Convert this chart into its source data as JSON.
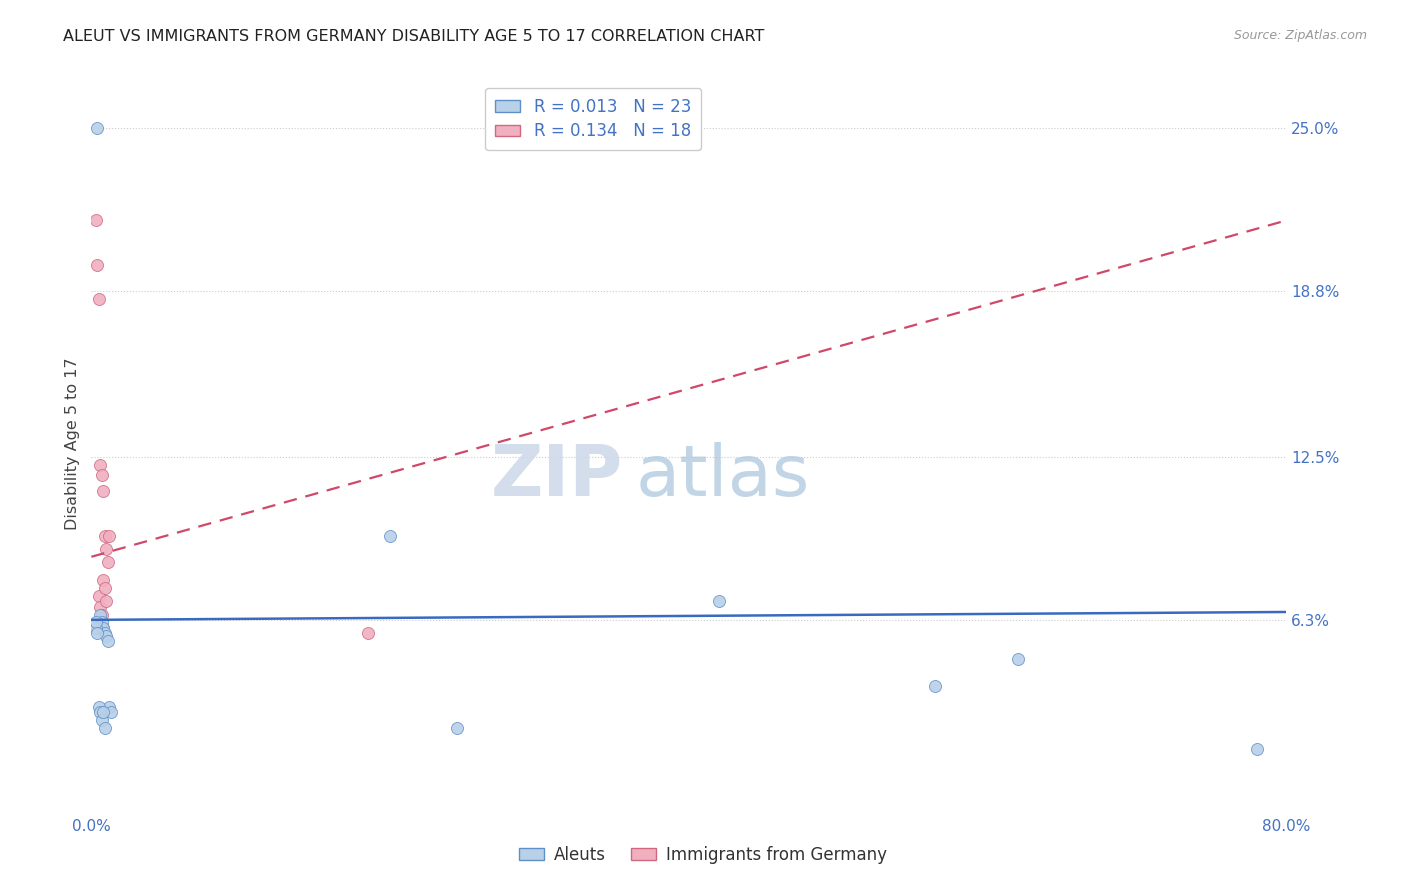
{
  "title": "ALEUT VS IMMIGRANTS FROM GERMANY DISABILITY AGE 5 TO 17 CORRELATION CHART",
  "source": "Source: ZipAtlas.com",
  "ylabel": "Disability Age 5 to 17",
  "xmin": 0.0,
  "xmax": 0.8,
  "ymin": -0.01,
  "ymax": 0.27,
  "yticks": [
    0.063,
    0.125,
    0.188,
    0.25
  ],
  "ytick_labels": [
    "6.3%",
    "12.5%",
    "18.8%",
    "25.0%"
  ],
  "xticks": [
    0.0,
    0.1,
    0.2,
    0.3,
    0.4,
    0.5,
    0.6,
    0.7,
    0.8
  ],
  "xtick_labels": [
    "0.0%",
    "",
    "",
    "",
    "",
    "",
    "",
    "",
    "80.0%"
  ],
  "aleuts_color": "#b8d0e8",
  "aleuts_edge_color": "#6090c8",
  "germany_color": "#f0b0c0",
  "germany_edge_color": "#d06880",
  "trend_aleuts_color": "#3a6abf",
  "trend_germany_color": "#d04868",
  "background_color": "#ffffff",
  "grid_color": "#cccccc",
  "title_color": "#222222",
  "axis_label_color": "#444444",
  "tick_color": "#4472c4",
  "marker_size": 75,
  "aleuts_x": [
    0.004,
    0.006,
    0.007,
    0.008,
    0.009,
    0.01,
    0.011,
    0.012,
    0.013,
    0.003,
    0.003,
    0.004,
    0.005,
    0.006,
    0.007,
    0.008,
    0.009,
    0.2,
    0.245,
    0.42,
    0.565,
    0.62,
    0.78
  ],
  "aleuts_y": [
    0.25,
    0.065,
    0.062,
    0.06,
    0.058,
    0.057,
    0.055,
    0.03,
    0.028,
    0.06,
    0.062,
    0.058,
    0.03,
    0.028,
    0.025,
    0.028,
    0.022,
    0.095,
    0.022,
    0.07,
    0.038,
    0.048,
    0.014
  ],
  "germany_x": [
    0.003,
    0.004,
    0.005,
    0.006,
    0.007,
    0.008,
    0.009,
    0.01,
    0.011,
    0.012,
    0.005,
    0.006,
    0.007,
    0.008,
    0.185,
    0.008,
    0.009,
    0.01
  ],
  "germany_y": [
    0.215,
    0.198,
    0.185,
    0.122,
    0.118,
    0.112,
    0.095,
    0.09,
    0.085,
    0.095,
    0.072,
    0.068,
    0.065,
    0.06,
    0.058,
    0.078,
    0.075,
    0.07
  ],
  "trend_aleuts_x0": 0.0,
  "trend_aleuts_y0": 0.063,
  "trend_aleuts_x1": 0.8,
  "trend_aleuts_y1": 0.066,
  "trend_germany_x0": 0.0,
  "trend_germany_y0": 0.087,
  "trend_germany_x1": 0.8,
  "trend_germany_y1": 0.215,
  "legend_r1": "R = 0.013",
  "legend_n1": "N = 23",
  "legend_r2": "R = 0.134",
  "legend_n2": "N = 18",
  "legend1_label": "Aleuts",
  "legend2_label": "Immigrants from Germany",
  "watermark_zip": "ZIP",
  "watermark_atlas": "atlas"
}
